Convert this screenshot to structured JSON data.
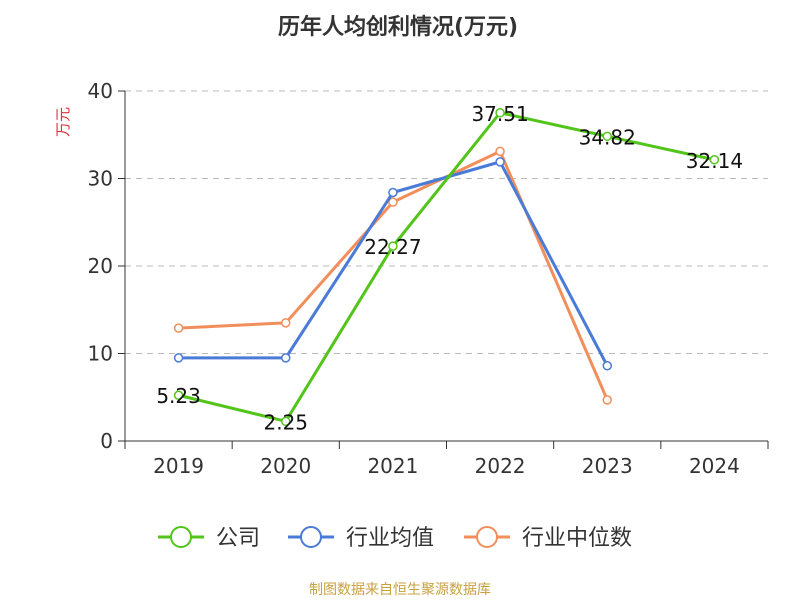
{
  "chart_data": {
    "type": "line",
    "title": "历年人均创利情况(万元)",
    "ylabel": "万元",
    "xlabel": "",
    "categories": [
      "2019",
      "2020",
      "2021",
      "2022",
      "2023",
      "2024"
    ],
    "ylim": [
      0,
      40
    ],
    "yticks": [
      0,
      10,
      20,
      30,
      40
    ],
    "grid": true,
    "legend_position": "bottom",
    "series": [
      {
        "name": "公司",
        "color": "#52c41a",
        "values": [
          5.23,
          2.25,
          22.27,
          37.51,
          34.82,
          32.14
        ],
        "labels": [
          "5.23",
          "2.25",
          "22.27",
          "37.51",
          "34.82",
          "32.14"
        ]
      },
      {
        "name": "行业均值",
        "color": "#4a7bd6",
        "values": [
          9.5,
          9.5,
          28.4,
          31.9,
          8.6,
          null
        ]
      },
      {
        "name": "行业中位数",
        "color": "#f28e5b",
        "values": [
          12.9,
          13.5,
          27.3,
          33.1,
          4.7,
          null
        ]
      }
    ]
  },
  "colors": {
    "title": "#333333",
    "ylabel": "#e0303a",
    "axis": "#333333",
    "grid": "#bbbbbb",
    "source": "#c8a040"
  },
  "source": "制图数据来自恒生聚源数据库"
}
